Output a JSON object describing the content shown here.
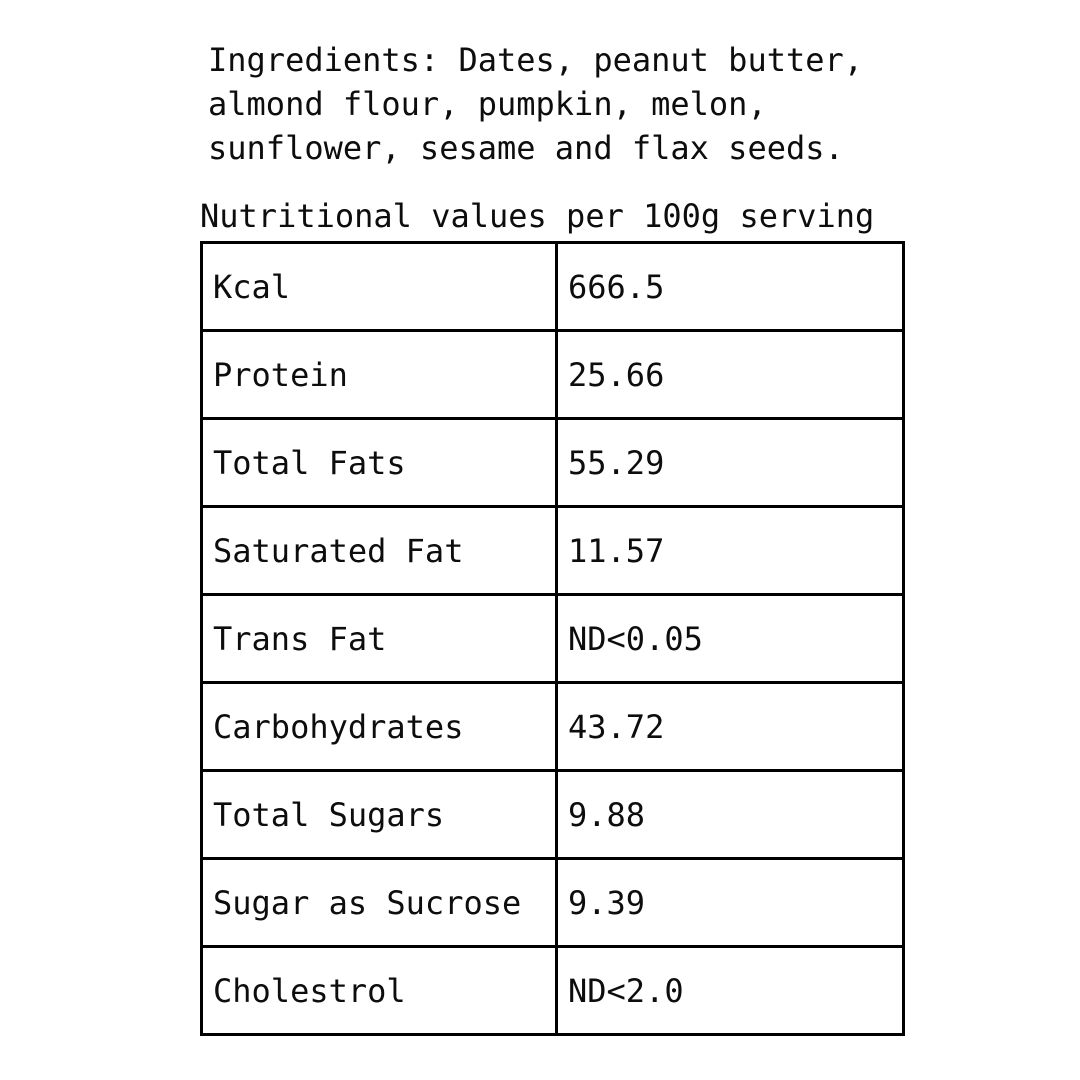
{
  "ingredients": {
    "lines": [
      "Ingredients: Dates, peanut butter,",
      "almond flour, pumpkin, melon,",
      "sunflower, sesame and flax seeds."
    ]
  },
  "table": {
    "title": "Nutritional values per 100g serving",
    "rows": [
      {
        "label": "Kcal",
        "value": "666.5"
      },
      {
        "label": "Protein",
        "value": "25.66"
      },
      {
        "label": "Total Fats",
        "value": "55.29"
      },
      {
        "label": "Saturated Fat",
        "value": "11.57"
      },
      {
        "label": "Trans Fat",
        "value": "ND<0.05"
      },
      {
        "label": "Carbohydrates",
        "value": "43.72"
      },
      {
        "label": "Total Sugars",
        "value": "9.88"
      },
      {
        "label": "Sugar as Sucrose",
        "value": "9.39"
      },
      {
        "label": "Cholestrol",
        "value": "ND<2.0"
      }
    ]
  },
  "colors": {
    "text": "#0d0d0d",
    "border": "#000000",
    "background": "#ffffff"
  }
}
